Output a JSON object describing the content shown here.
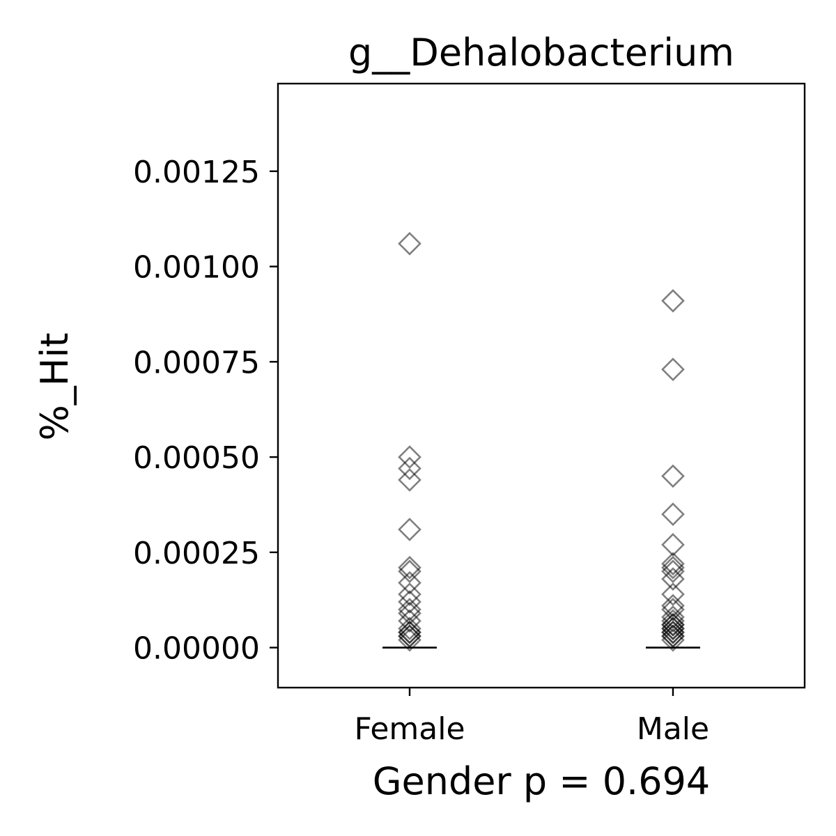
{
  "chart_data": {
    "type": "scatter",
    "title": "g__Dehalobacterium",
    "xlabel": "Gender p = 0.694",
    "ylabel": "%_Hit",
    "categories": [
      "Female",
      "Male"
    ],
    "ylim": [
      -0.000105,
      0.00148
    ],
    "yticks": [
      0.0,
      0.00025,
      0.0005,
      0.00075,
      0.001,
      0.00125
    ],
    "ytick_labels": [
      "0.00000",
      "0.00025",
      "0.00050",
      "0.00075",
      "0.00100",
      "0.00125"
    ],
    "grid": false,
    "legend": "none",
    "marker": "diamond-open",
    "marker_color": "#000000",
    "marker_alpha": 0.5,
    "series": [
      {
        "category": "Female",
        "values": [
          0.00106,
          0.0005,
          0.00047,
          0.00044,
          0.00031,
          0.00021,
          0.0002,
          0.00017,
          0.00014,
          0.00012,
          0.0001,
          9e-05,
          7e-05,
          5e-05,
          4e-05,
          4e-05,
          3e-05,
          3e-05,
          2e-05
        ],
        "median": 0.0
      },
      {
        "category": "Male",
        "values": [
          0.00091,
          0.00073,
          0.00045,
          0.00035,
          0.00027,
          0.00022,
          0.00021,
          0.0002,
          0.00018,
          0.00014,
          0.00011,
          0.0001,
          8e-05,
          7e-05,
          6e-05,
          6e-05,
          5e-05,
          5e-05,
          4e-05,
          4e-05,
          3e-05,
          3e-05,
          2e-05
        ],
        "median": 0.0
      }
    ]
  }
}
